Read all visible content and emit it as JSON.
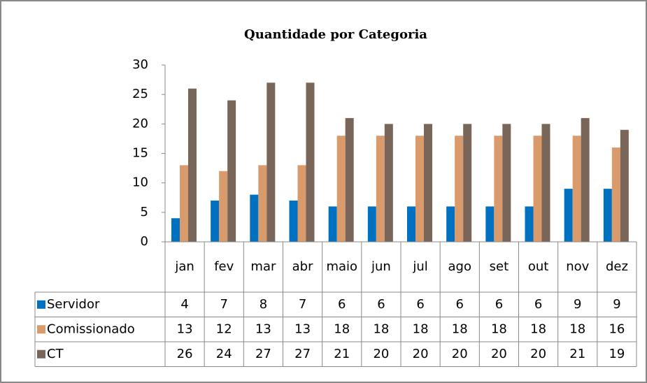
{
  "chart_data": {
    "type": "bar",
    "title": "Quantidade por Categoria",
    "categories": [
      "jan",
      "fev",
      "mar",
      "abr",
      "maio",
      "jun",
      "jul",
      "ago",
      "set",
      "out",
      "nov",
      "dez"
    ],
    "series": [
      {
        "name": "Servidor",
        "color": "#0070c0",
        "values": [
          4,
          7,
          8,
          7,
          6,
          6,
          6,
          6,
          6,
          6,
          9,
          9
        ]
      },
      {
        "name": "Comissionado",
        "color": "#d99a6c",
        "values": [
          13,
          12,
          13,
          13,
          18,
          18,
          18,
          18,
          18,
          18,
          18,
          16
        ]
      },
      {
        "name": "CT",
        "color": "#7a6658",
        "values": [
          26,
          24,
          27,
          27,
          21,
          20,
          20,
          20,
          20,
          20,
          21,
          19
        ]
      }
    ],
    "ylim": [
      0,
      30
    ],
    "yticks": [
      0,
      5,
      10,
      15,
      20,
      25,
      30
    ],
    "grid": false,
    "data_table": true
  }
}
